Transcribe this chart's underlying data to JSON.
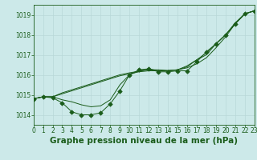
{
  "title": "Graphe pression niveau de la mer (hPa)",
  "bg_color": "#cce9e9",
  "grid_color": "#b8d8d8",
  "line_color": "#1a5c1a",
  "xlim": [
    0,
    23
  ],
  "ylim": [
    1013.5,
    1019.5
  ],
  "yticks": [
    1014,
    1015,
    1016,
    1017,
    1018,
    1019
  ],
  "xticks": [
    0,
    1,
    2,
    3,
    4,
    5,
    6,
    7,
    8,
    9,
    10,
    11,
    12,
    13,
    14,
    15,
    16,
    17,
    18,
    19,
    20,
    21,
    22,
    23
  ],
  "series_plain": [
    [
      1014.8,
      1014.9,
      1014.9,
      1015.05,
      1015.2,
      1015.35,
      1015.5,
      1015.65,
      1015.8,
      1015.95,
      1016.05,
      1016.15,
      1016.2,
      1016.2,
      1016.2,
      1016.25,
      1016.35,
      1016.55,
      1016.85,
      1017.35,
      1017.9,
      1018.55,
      1019.05,
      1019.2
    ],
    [
      1014.8,
      1014.9,
      1014.9,
      1015.1,
      1015.25,
      1015.4,
      1015.55,
      1015.7,
      1015.85,
      1016.0,
      1016.1,
      1016.18,
      1016.25,
      1016.25,
      1016.22,
      1016.25,
      1016.45,
      1016.75,
      1017.1,
      1017.55,
      1018.0,
      1018.6,
      1019.05,
      1019.2
    ],
    [
      1014.8,
      1014.9,
      1014.9,
      1014.75,
      1014.65,
      1014.5,
      1014.4,
      1014.45,
      1014.75,
      1015.5,
      1016.0,
      1016.2,
      1016.3,
      1016.2,
      1016.2,
      1016.25,
      1016.4,
      1016.75,
      1017.0,
      1017.55,
      1018.0,
      1018.55,
      1019.05,
      1019.2
    ]
  ],
  "series_marker": [
    1014.8,
    1014.9,
    1014.85,
    1014.6,
    1014.15,
    1014.0,
    1014.0,
    1014.1,
    1014.55,
    1015.2,
    1016.0,
    1016.25,
    1016.3,
    1016.15,
    1016.15,
    1016.2,
    1016.2,
    1016.65,
    1017.15,
    1017.55,
    1018.0,
    1018.55,
    1019.05,
    1019.2
  ],
  "marker": "D",
  "marker_size": 2.8,
  "title_fontsize": 7.5,
  "tick_fontsize": 5.5,
  "linewidth": 0.7
}
